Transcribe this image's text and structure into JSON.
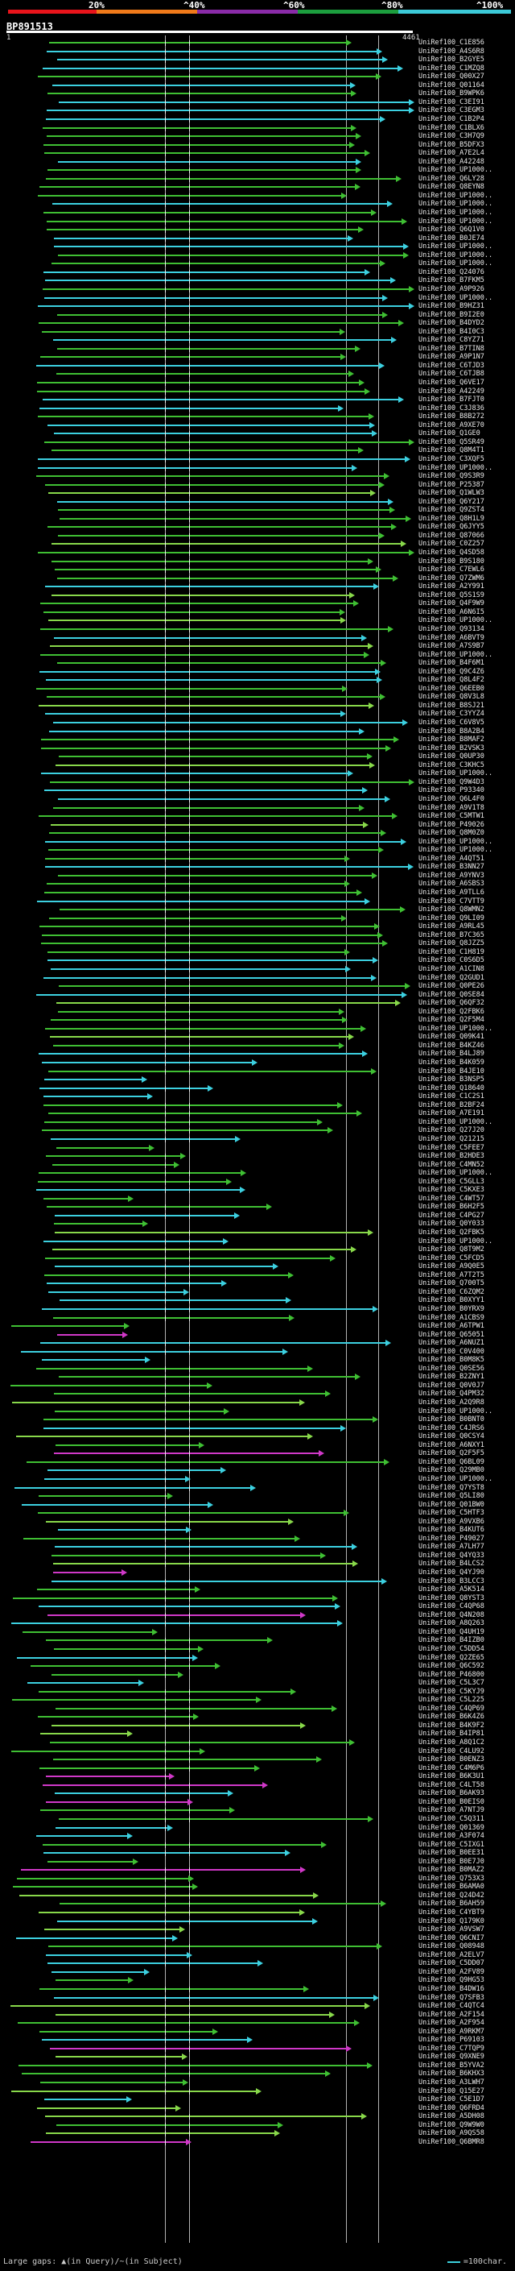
{
  "scale": {
    "labels": [
      "20%",
      "^40%",
      "^60%",
      "^80%",
      "^100%"
    ],
    "colors": [
      "#e8141b",
      "#f07a1a",
      "#8a2ba8",
      "#1c9e3e",
      "#3ccad8"
    ]
  },
  "query": {
    "title": "BP891513",
    "start": "1",
    "end": "4461"
  },
  "row_colors": {
    "cyan": "#3cd0e0",
    "green": "#3fbf33",
    "lightgreen": "#88d84a",
    "magenta": "#d038c8",
    "purple": "#9030c0"
  },
  "hits": [
    "UniRef100_C1E856",
    "UniRef100_A4S6R8",
    "UniRef100_B2GYE5",
    "UniRef100_C1MZQ8",
    "UniRef100_Q00X27",
    "UniRef100_Q01164",
    "UniRef100_B9WPK6",
    "UniRef100_C3EI91",
    "UniRef100_C3EGM3",
    "UniRef100_C1B2P4",
    "UniRef100_C1BLX6",
    "UniRef100_C3H7Q9",
    "UniRef100_B5DFX3",
    "UniRef100_A7E2L4",
    "UniRef100_A42248",
    "UniRef100_UP1000..",
    "UniRef100_Q6LY28",
    "UniRef100_Q8EYN8",
    "UniRef100_UP1000..",
    "UniRef100_UP1000..",
    "UniRef100_UP1000..",
    "UniRef100_UP1000..",
    "UniRef100_Q6Q1V0",
    "UniRef100_B0JE74",
    "UniRef100_UP1000..",
    "UniRef100_UP1000..",
    "UniRef100_UP1000..",
    "UniRef100_Q24076",
    "UniRef100_B7FKM5",
    "UniRef100_A9P926",
    "UniRef100_UP1000..",
    "UniRef100_B9HZ31",
    "UniRef100_B9I2E0",
    "UniRef100_B4DYD2",
    "UniRef100_B4I0C3",
    "UniRef100_C8YZ71",
    "UniRef100_B7TIN8",
    "UniRef100_A9P1N7",
    "UniRef100_C6TJD3",
    "UniRef100_C6TJB8",
    "UniRef100_Q6VE17",
    "UniRef100_A42249",
    "UniRef100_B7FJT0",
    "UniRef100_C3J836",
    "UniRef100_B8B272",
    "UniRef100_A9XE70",
    "UniRef100_Q1GE0",
    "UniRef100_Q5SR49",
    "UniRef100_Q8M4T1",
    "UniRef100_C3XQF5",
    "UniRef100_UP1000..",
    "UniRef100_Q9S3R9",
    "UniRef100_P25387",
    "UniRef100_Q1WLW3",
    "UniRef100_Q6Y217",
    "UniRef100_Q9ZST4",
    "UniRef100_Q8H1L9",
    "UniRef100_Q6JYY5",
    "UniRef100_Q87066",
    "UniRef100_C0Z257",
    "UniRef100_Q4SD58",
    "UniRef100_B9S180",
    "UniRef100_C7EWL6",
    "UniRef100_Q7ZWM6",
    "UniRef100_A2Y991",
    "UniRef100_Q5S1S9",
    "UniRef100_Q4F9W9",
    "UniRef100_A6N6I5",
    "UniRef100_UP1000..",
    "UniRef100_Q93134",
    "UniRef100_A6BVT9",
    "UniRef100_A7S9B7",
    "UniRef100_UP1000..",
    "UniRef100_B4F6M1",
    "UniRef100_Q9C4Z6",
    "UniRef100_Q8L4F2",
    "UniRef100_Q6EEB0",
    "UniRef100_Q8V3L8",
    "UniRef100_B8SJ21",
    "UniRef100_C3YYZ4",
    "UniRef100_C6V8V5",
    "UniRef100_B8A2B4",
    "UniRef100_B8MAF2",
    "UniRef100_B2VSK3",
    "UniRef100_Q0UP30",
    "UniRef100_C3KHC5",
    "UniRef100_UP1000..",
    "UniRef100_Q9W4D3",
    "UniRef100_P93340",
    "UniRef100_Q6L4F0",
    "UniRef100_A9V1T8",
    "UniRef100_C5MTW1",
    "UniRef100_P49026",
    "UniRef100_Q8M0Z0",
    "UniRef100_UP1000..",
    "UniRef100_UP1000..",
    "UniRef100_A4QT51",
    "UniRef100_B3NN27",
    "UniRef100_A9YNV3",
    "UniRef100_A6SBS3",
    "UniRef100_A9TLL6",
    "UniRef100_C7VTT9",
    "UniRef100_Q8WMN2",
    "UniRef100_Q9LI09",
    "UniRef100_A9RL45",
    "UniRef100_B7C365",
    "UniRef100_Q8JZZ5",
    "UniRef100_C1H819",
    "UniRef100_C0S6D5",
    "UniRef100_A1CIN8",
    "UniRef100_Q2GUD1",
    "UniRef100_Q0PE26",
    "UniRef100_Q0SE84",
    "UniRef100_Q6QF32",
    "UniRef100_Q2FBK6",
    "UniRef100_Q2F5M4",
    "UniRef100_UP1000..",
    "UniRef100_Q09K41",
    "UniRef100_B4KZ46",
    "UniRef100_B4LJ89",
    "UniRef100_B4K059",
    "UniRef100_B4JE10",
    "UniRef100_B3NSP5",
    "UniRef100_Q18640",
    "UniRef100_C1C2S1",
    "UniRef100_B2BF24",
    "UniRef100_A7E191",
    "UniRef100_UP1000..",
    "UniRef100_Q27J20",
    "UniRef100_Q21215",
    "UniRef100_C5FEE7",
    "UniRef100_B2HDE3",
    "UniRef100_C4MN52",
    "UniRef100_UP1000..",
    "UniRef100_C5GLL3",
    "UniRef100_C5KXE3",
    "UniRef100_C4WT57",
    "UniRef100_B6H2F5",
    "UniRef100_C4PG27",
    "UniRef100_Q0Y033",
    "UniRef100_Q2FBK5",
    "UniRef100_UP1000..",
    "UniRef100_Q8T9M2",
    "UniRef100_C5FCD5",
    "UniRef100_A9Q0E5",
    "UniRef100_A7T2T5",
    "UniRef100_Q700T5",
    "UniRef100_C6ZQM2",
    "UniRef100_B0XYY1",
    "UniRef100_B0YRX9",
    "UniRef100_A1CBS9",
    "UniRef100_A6TPW1",
    "UniRef100_Q65051",
    "UniRef100_A6NUZ1",
    "UniRef100_C0V400",
    "UniRef100_B0M8K5",
    "UniRef100_Q0SE56",
    "UniRef100_B2ZNY1",
    "UniRef100_Q0V0J7",
    "UniRef100_Q4PM32",
    "UniRef100_A2Q9R8",
    "UniRef100_UP1000..",
    "UniRef100_B0BNT0",
    "UniRef100_C4JRS6",
    "UniRef100_Q0CSY4",
    "UniRef100_A6NXY1",
    "UniRef100_Q2F5F5",
    "UniRef100_Q6BL09",
    "UniRef100_Q29MB0",
    "UniRef100_UP1000..",
    "UniRef100_Q7YST8",
    "UniRef100_Q5LI80",
    "UniRef100_Q01BW0",
    "UniRef100_C5HTF3",
    "UniRef100_A9VXB6",
    "UniRef100_B4KUT6",
    "UniRef100_P49027",
    "UniRef100_A7LH77",
    "UniRef100_Q4YQ33",
    "UniRef100_B4LCS2",
    "UniRef100_Q4YJ90",
    "UniRef100_B3LCC3",
    "UniRef100_A5K514",
    "UniRef100_Q8YST3",
    "UniRef100_C4QP68",
    "UniRef100_Q4N208",
    "UniRef100_A8Q263",
    "UniRef100_Q4UH19",
    "UniRef100_B4IZB0",
    "UniRef100_C5DD54",
    "UniRef100_Q2ZE65",
    "UniRef100_Q6C592",
    "UniRef100_P46800",
    "UniRef100_C5L3C7",
    "UniRef100_C5KYJ9",
    "UniRef100_C5L225",
    "UniRef100_C4QP69",
    "UniRef100_B6K4Z6",
    "UniRef100_B4K9F2",
    "UniRef100_B4IP81",
    "UniRef100_A8Q1C2",
    "UniRef100_C4LU92",
    "UniRef100_B0ENZ3",
    "UniRef100_C4M6P6",
    "UniRef100_B6K3U1",
    "UniRef100_C4LT58",
    "UniRef100_B6AK93",
    "UniRef100_B0EIS0",
    "UniRef100_A7NTJ9",
    "UniRef100_C5Q311",
    "UniRef100_Q01369",
    "UniRef100_A3F074",
    "UniRef100_C5IXG1",
    "UniRef100_B0EE31",
    "UniRef100_B0E7J0",
    "UniRef100_B0MAZ2",
    "UniRef100_Q753X3",
    "UniRef100_B6AMA0",
    "UniRef100_Q24D42",
    "UniRef100_B6AH59",
    "UniRef100_C4YBT9",
    "UniRef100_Q179K0",
    "UniRef100_A9VSW7",
    "UniRef100_Q6CNI7",
    "UniRef100_Q08948",
    "UniRef100_A2ELV7",
    "UniRef100_C5DD07",
    "UniRef100_A2FV89",
    "UniRef100_Q9HG53",
    "UniRef100_B4DW16",
    "UniRef100_Q7SFB3",
    "UniRef100_C4QTC4",
    "UniRef100_A2F154",
    "UniRef100_A2F954",
    "UniRef100_A9RKM7",
    "UniRef100_P69103",
    "UniRef100_C7TQP9",
    "UniRef100_Q9XNE9",
    "UniRef100_B5YVA2",
    "UniRef100_B6KHX3",
    "UniRef100_A3LWH7",
    "UniRef100_Q15E27",
    "UniRef100_C5E1D7",
    "UniRef100_Q6FRD4",
    "UniRef100_A5DH08",
    "UniRef100_Q9W9W0",
    "UniRef100_A9QS58",
    "UniRef100_Q6BMR8"
  ],
  "legend": {
    "left": "Large gaps: ▲(in Query)/~(in Subject)",
    "right": "=100char."
  }
}
